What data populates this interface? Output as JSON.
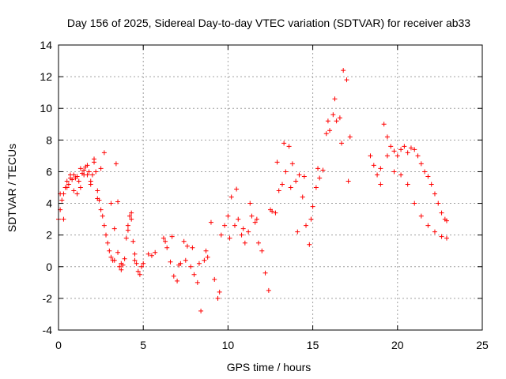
{
  "chart_data": {
    "type": "scatter",
    "title": "Day 156 of 2025, Sidereal Day-to-day VTEC variation (SDTVAR) for receiver ab33",
    "xlabel": "GPS time / hours",
    "ylabel": "SDTVAR / TECUs",
    "xlim": [
      0,
      25
    ],
    "ylim": [
      -4,
      14
    ],
    "xticks": [
      0,
      5,
      10,
      15,
      20,
      25
    ],
    "yticks": [
      -4,
      -2,
      0,
      2,
      4,
      6,
      8,
      10,
      12,
      14
    ],
    "grid": true,
    "marker": "+",
    "color": "#ff0000",
    "series": [
      {
        "name": "SDTVAR",
        "x": [
          0.0,
          0.1,
          0.2,
          0.3,
          0.4,
          0.5,
          0.6,
          0.7,
          0.8,
          0.9,
          1.0,
          1.1,
          1.2,
          1.3,
          1.4,
          1.5,
          1.6,
          1.7,
          1.8,
          1.9,
          2.0,
          2.1,
          2.2,
          2.3,
          2.4,
          2.5,
          2.6,
          2.7,
          2.8,
          2.9,
          3.0,
          3.1,
          3.2,
          3.3,
          3.4,
          3.5,
          3.6,
          3.7,
          3.8,
          3.9,
          4.0,
          4.1,
          4.2,
          4.3,
          4.4,
          4.5,
          4.6,
          4.7,
          4.8,
          4.9,
          5.0,
          5.3,
          5.5,
          5.7,
          6.2,
          6.4,
          6.6,
          6.8,
          7.0,
          7.2,
          7.4,
          7.6,
          7.8,
          8.0,
          8.2,
          8.4,
          8.6,
          8.8,
          9.0,
          9.2,
          9.4,
          9.6,
          9.8,
          10.0,
          10.2,
          10.4,
          10.6,
          10.8,
          11.0,
          11.2,
          11.4,
          11.6,
          11.8,
          12.0,
          12.2,
          12.4,
          12.6,
          12.8,
          13.0,
          13.2,
          13.4,
          13.6,
          13.8,
          14.0,
          14.2,
          14.4,
          14.6,
          14.8,
          15.0,
          15.2,
          15.4,
          15.6,
          15.8,
          16.0,
          16.2,
          16.4,
          16.6,
          16.8,
          17.0,
          17.2,
          18.4,
          18.6,
          18.8,
          19.0,
          19.2,
          19.4,
          19.6,
          19.8,
          20.0,
          20.2,
          20.4,
          20.6,
          20.8,
          21.0,
          21.2,
          21.4,
          21.6,
          21.8,
          22.0,
          22.2,
          22.4,
          22.6,
          22.8,
          22.9,
          0.1,
          0.3,
          0.5,
          0.7,
          0.9,
          1.1,
          1.3,
          1.5,
          1.7,
          1.9,
          2.1,
          2.3,
          2.5,
          2.7,
          3.1,
          3.3,
          3.5,
          3.7,
          4.1,
          4.3,
          4.5,
          6.3,
          6.7,
          7.1,
          7.5,
          7.9,
          8.3,
          8.7,
          9.5,
          10.1,
          10.5,
          10.9,
          11.3,
          11.7,
          12.5,
          12.9,
          13.3,
          13.7,
          14.1,
          14.5,
          14.9,
          15.3,
          15.9,
          16.3,
          16.7,
          17.1,
          19.0,
          19.4,
          19.8,
          20.2,
          20.6,
          21.0,
          21.4,
          21.8,
          22.2,
          22.6,
          22.9
        ],
        "y": [
          3.0,
          3.6,
          4.2,
          4.6,
          5.0,
          5.4,
          5.2,
          5.6,
          5.5,
          5.8,
          5.6,
          5.7,
          5.4,
          6.2,
          5.9,
          6.1,
          6.3,
          5.8,
          6.0,
          5.4,
          5.8,
          6.6,
          6.0,
          4.8,
          4.2,
          3.6,
          3.2,
          2.6,
          2.0,
          1.5,
          1.0,
          0.6,
          0.4,
          0.4,
          6.5,
          4.1,
          0.0,
          -0.2,
          0.1,
          0.5,
          1.8,
          2.6,
          3.2,
          3.4,
          1.6,
          0.8,
          0.2,
          -0.3,
          -0.5,
          0.0,
          0.2,
          0.8,
          0.7,
          0.9,
          1.8,
          1.2,
          0.3,
          -0.6,
          -0.9,
          0.2,
          1.6,
          1.3,
          0.0,
          -0.5,
          -1.0,
          -2.8,
          0.4,
          0.6,
          2.8,
          -0.8,
          -2.0,
          2.0,
          2.6,
          3.2,
          4.4,
          2.6,
          3.0,
          2.0,
          1.5,
          2.2,
          3.2,
          2.8,
          1.5,
          1.0,
          -0.4,
          -1.5,
          3.5,
          3.4,
          4.8,
          5.2,
          6.0,
          7.6,
          6.5,
          5.4,
          5.8,
          4.4,
          2.6,
          1.4,
          3.8,
          5.0,
          5.6,
          6.1,
          8.4,
          8.6,
          9.6,
          9.2,
          9.4,
          12.4,
          11.8,
          8.2,
          7.0,
          6.4,
          5.8,
          5.2,
          9.0,
          8.2,
          7.6,
          7.3,
          7.0,
          7.4,
          7.6,
          7.2,
          7.5,
          7.4,
          7.0,
          6.5,
          6.0,
          5.7,
          5.2,
          4.6,
          4.0,
          3.4,
          3.0,
          2.9,
          4.6,
          3.0,
          5.0,
          5.8,
          4.8,
          4.6,
          5.0,
          5.8,
          6.4,
          5.2,
          6.8,
          4.3,
          6.2,
          7.2,
          4.0,
          2.4,
          0.9,
          0.2,
          2.3,
          3.0,
          0.4,
          1.6,
          1.9,
          0.1,
          0.4,
          1.2,
          0.2,
          1.0,
          -1.6,
          1.8,
          4.9,
          2.4,
          4.0,
          3.0,
          3.6,
          6.6,
          7.8,
          5.0,
          2.2,
          5.7,
          3.0,
          6.2,
          9.2,
          10.6,
          7.8,
          5.4,
          6.2,
          7.0,
          6.0,
          5.8,
          5.2,
          4.0,
          3.2,
          2.6,
          2.2,
          1.9,
          1.8
        ]
      }
    ]
  }
}
